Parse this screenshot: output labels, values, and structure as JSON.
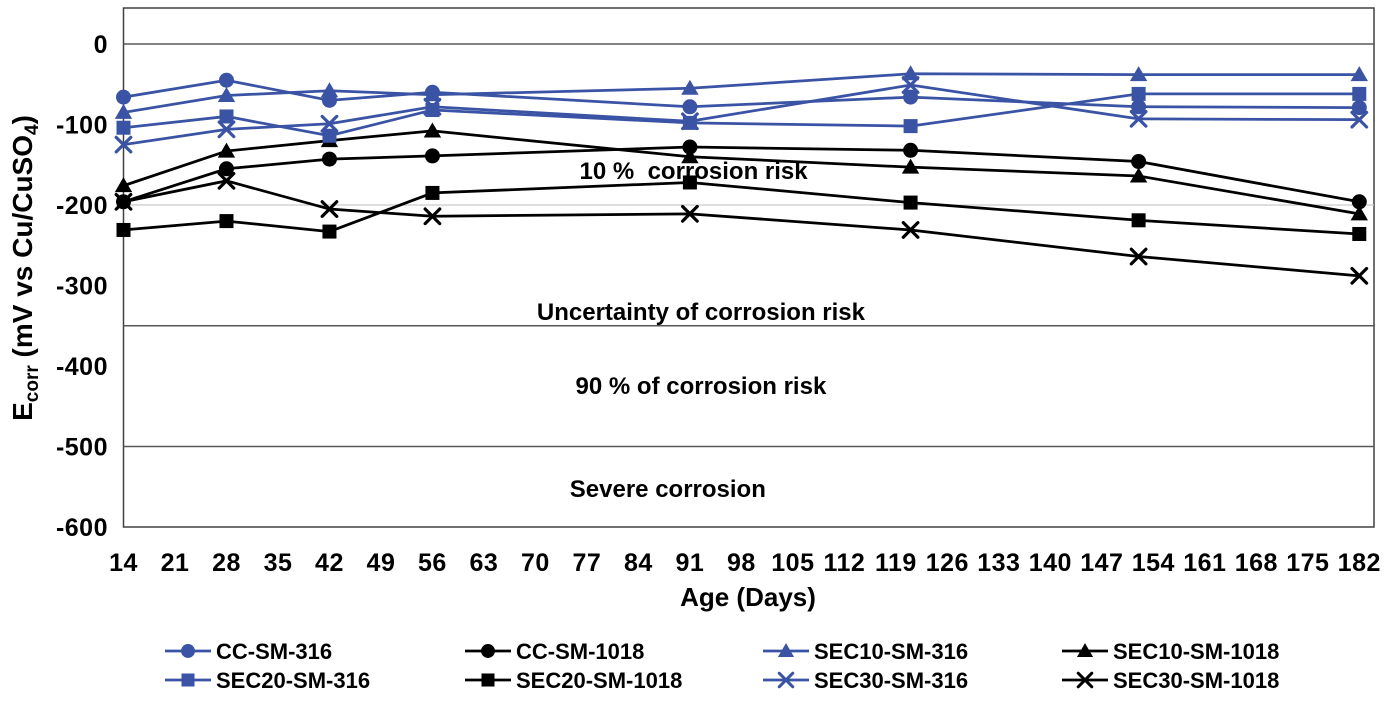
{
  "chart_data": {
    "type": "line",
    "title": "",
    "xlabel": "Age (Days)",
    "ylabel": "Ecorr (mV vs Cu/CuSO4)",
    "ylabel_parts": [
      {
        "text": "E"
      },
      {
        "text": "corr",
        "sub": true
      },
      {
        "text": " (mV vs Cu/CuSO"
      },
      {
        "text": "4",
        "sub": true
      },
      {
        "text": ")"
      }
    ],
    "xlim": [
      14,
      184
    ],
    "ylim": [
      -600,
      45
    ],
    "x_ticks": [
      14,
      21,
      28,
      35,
      42,
      49,
      56,
      63,
      70,
      77,
      84,
      91,
      98,
      105,
      112,
      119,
      126,
      133,
      140,
      147,
      154,
      161,
      168,
      175,
      182
    ],
    "y_ticks": [
      0,
      -100,
      -200,
      -300,
      -400,
      -500,
      -600
    ],
    "grid": "horizontal-reference-lines-only",
    "x": [
      14,
      28,
      42,
      56,
      91,
      121,
      152,
      182
    ],
    "series": [
      {
        "name": "CC-SM-316",
        "marker": "circle",
        "color": "#3a53a4",
        "values": [
          -66,
          -45,
          -70,
          -60,
          -78,
          -66,
          -78,
          -79
        ]
      },
      {
        "name": "CC-SM-1018",
        "marker": "circle",
        "color": "#000000",
        "values": [
          -196,
          -155,
          -143,
          -139,
          -128,
          -132,
          -146,
          -196
        ]
      },
      {
        "name": "SEC10-SM-316",
        "marker": "triangle",
        "color": "#3a53a4",
        "values": [
          -85,
          -64,
          -58,
          -63,
          -55,
          -37,
          -38,
          -38
        ]
      },
      {
        "name": "SEC10-SM-1018",
        "marker": "triangle",
        "color": "#000000",
        "values": [
          -176,
          -133,
          -120,
          -108,
          -140,
          -153,
          -164,
          -211
        ]
      },
      {
        "name": "SEC20-SM-316",
        "marker": "square",
        "color": "#3a53a4",
        "values": [
          -104,
          -90,
          -114,
          -82,
          -98,
          -102,
          -62,
          -62
        ]
      },
      {
        "name": "SEC20-SM-1018",
        "marker": "square",
        "color": "#000000",
        "values": [
          -231,
          -220,
          -233,
          -185,
          -172,
          -197,
          -219,
          -236
        ]
      },
      {
        "name": "SEC30-SM-316",
        "marker": "x",
        "color": "#3a53a4",
        "values": [
          -125,
          -106,
          -99,
          -78,
          -96,
          -51,
          -93,
          -94
        ]
      },
      {
        "name": "SEC30-SM-1018",
        "marker": "x",
        "color": "#000000",
        "values": [
          -196,
          -170,
          -205,
          -214,
          -211,
          -231,
          -264,
          -288
        ]
      }
    ],
    "reference_lines": [
      {
        "y": 0,
        "color": "#595959",
        "width": 1.5
      },
      {
        "y": -200,
        "color": "#c9c9c9",
        "width": 1.2
      },
      {
        "y": -350,
        "color": "#595959",
        "width": 1.5
      },
      {
        "y": -500,
        "color": "#595959",
        "width": 1.5
      }
    ],
    "annotations": [
      {
        "id": "risk-10pct",
        "text": "10 %  corrosion risk",
        "x": 91.5,
        "y": -158
      },
      {
        "id": "risk-uncertainty",
        "text": "Uncertainty of corrosion risk",
        "x": 92.5,
        "y": -333
      },
      {
        "id": "risk-90pct",
        "text": "90 % of corrosion risk",
        "x": 92.5,
        "y": -425
      },
      {
        "id": "risk-severe",
        "text": "Severe corrosion",
        "x": 88,
        "y": -553
      }
    ],
    "legend": {
      "position": "bottom",
      "rows": 2,
      "order": [
        "CC-SM-316",
        "CC-SM-1018",
        "SEC10-SM-316",
        "SEC10-SM-1018",
        "SEC20-SM-316",
        "SEC20-SM-1018",
        "SEC30-SM-316",
        "SEC30-SM-1018"
      ]
    },
    "colors": {
      "steel_316": "#3a53a4",
      "steel_1018": "#000000"
    }
  }
}
